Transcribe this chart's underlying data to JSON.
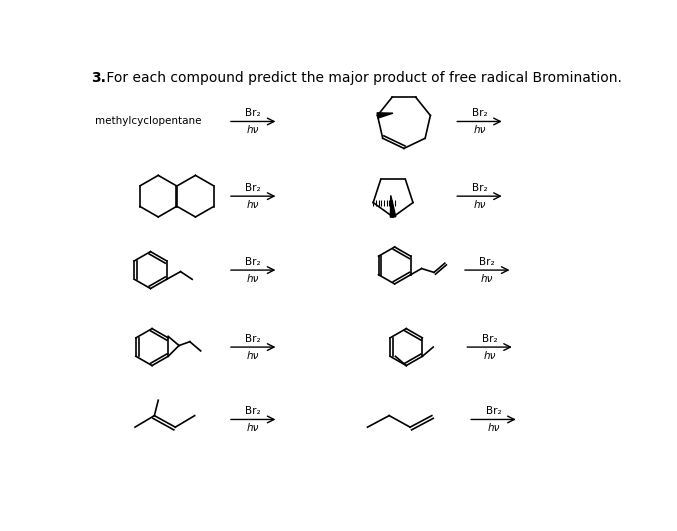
{
  "title_num": "3.",
  "title_rest": " For each compound predict the major product of free radical Bromination.",
  "bg_color": "#ffffff",
  "text_color": "#000000",
  "figsize": [
    6.77,
    5.31
  ],
  "dpi": 100,
  "label_methylcyclopentane": "methylcyclopentane",
  "reagent": "Br₂",
  "condition": "hν"
}
